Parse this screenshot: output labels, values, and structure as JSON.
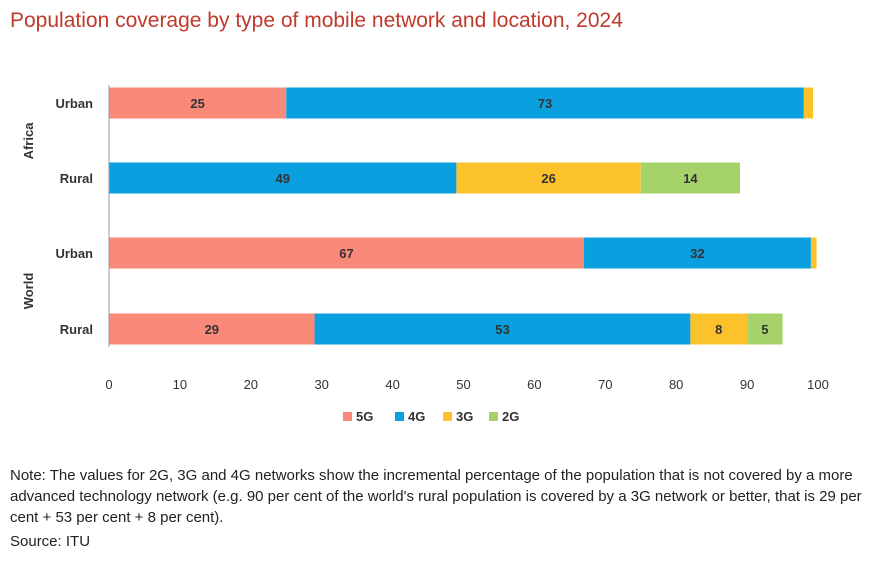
{
  "title": "Population coverage by type of mobile network and location, 2024",
  "note": "Note: The values for 2G, 3G and 4G networks show the incremental percentage of the population that is not covered by a more advanced technology network (e.g. 90 per cent of the world's rural population is covered by a 3G network or better, that is 29 per cent + 53 per cent + 8 per cent).",
  "source": "Source: ITU",
  "chart_data": {
    "type": "bar",
    "orientation": "horizontal",
    "stacked": true,
    "groups": [
      {
        "name": "Africa",
        "categories": [
          "Urban",
          "Rural"
        ]
      },
      {
        "name": "World",
        "categories": [
          "Urban",
          "Rural"
        ]
      }
    ],
    "categories": [
      "Africa Urban",
      "Africa Rural",
      "World Urban",
      "World Rural"
    ],
    "category_labels": [
      "Urban",
      "Rural",
      "Urban",
      "Rural"
    ],
    "series": [
      {
        "name": "5G",
        "color": "#f98a7a",
        "values": [
          25,
          0,
          67,
          29
        ],
        "labels": [
          "25",
          "",
          "67",
          "29"
        ]
      },
      {
        "name": "4G",
        "color": "#0a9fdf",
        "values": [
          73,
          49,
          32,
          53
        ],
        "labels": [
          "73",
          "49",
          "32",
          "53"
        ]
      },
      {
        "name": "3G",
        "color": "#fcc22c",
        "values": [
          1.3,
          26,
          0.8,
          8
        ],
        "labels": [
          "",
          "26",
          "",
          "8"
        ]
      },
      {
        "name": "2G",
        "color": "#a5d36a",
        "values": [
          0,
          14,
          0,
          5
        ],
        "labels": [
          "",
          "14",
          "",
          "5"
        ]
      }
    ],
    "xlim": [
      0,
      100
    ],
    "xticks": [
      0,
      10,
      20,
      30,
      40,
      50,
      60,
      70,
      80,
      90,
      100
    ],
    "grid": false,
    "legend_position": "bottom"
  }
}
